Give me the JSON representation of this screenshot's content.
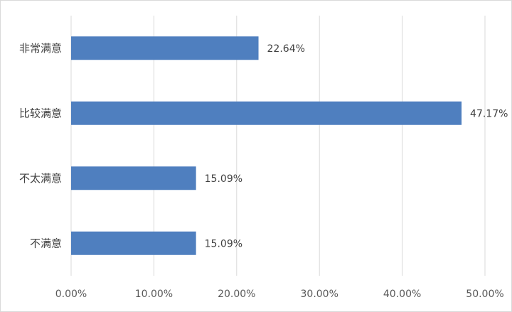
{
  "chart_data": {
    "type": "bar",
    "orientation": "horizontal",
    "title": "",
    "xlabel": "",
    "ylabel": "",
    "categories": [
      "非常满意",
      "比较满意",
      "不太满意",
      "不满意"
    ],
    "values": [
      22.64,
      47.17,
      15.09,
      15.09
    ],
    "data_labels": [
      "22.64%",
      "47.17%",
      "15.09%",
      "15.09%"
    ],
    "xlim": [
      0,
      50
    ],
    "x_ticks": [
      0,
      10,
      20,
      30,
      40,
      50
    ],
    "x_tick_labels": [
      "0.00%",
      "10.00%",
      "20.00%",
      "30.00%",
      "40.00%",
      "50.00%"
    ],
    "grid": "vertical",
    "legend": "none",
    "bar_color": "#4f7fbf",
    "grid_color": "#d9d9d9"
  }
}
